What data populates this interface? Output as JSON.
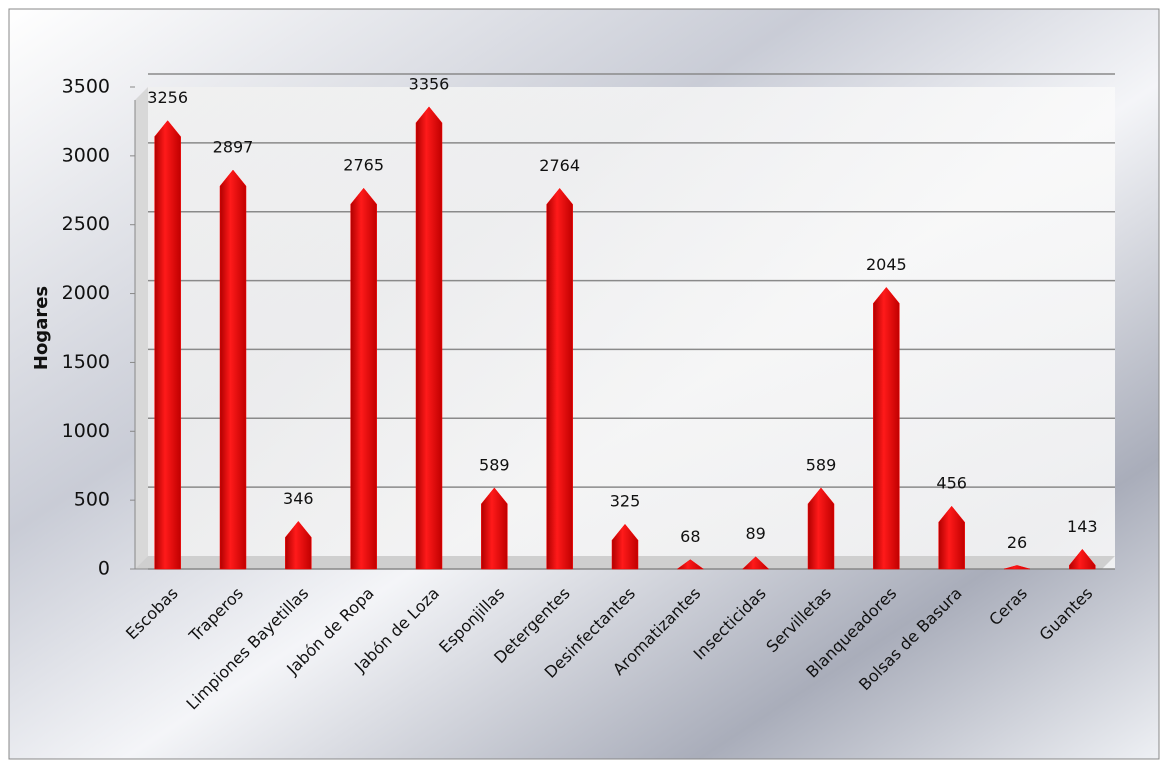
{
  "chart_data": {
    "type": "bar",
    "y_label": "Hogares",
    "categories": [
      "Escobas",
      "Traperos",
      "Limpiones Bayetillas",
      "Jabón de Ropa",
      "Jabón de Loza",
      "Esponjillas",
      "Detergentes",
      "Desinfectantes",
      "Aromatizantes",
      "Insecticidas",
      "Servilletas",
      "Blanqueadores",
      "Bolsas de Basura",
      "Ceras",
      "Guantes"
    ],
    "values": [
      3256,
      2897,
      346,
      2765,
      3356,
      589,
      2764,
      325,
      68,
      89,
      589,
      2045,
      456,
      26,
      143
    ],
    "color": "#ff0000",
    "ylim": [
      0,
      3500
    ],
    "yticks": [
      0,
      500,
      1000,
      1500,
      2000,
      2500,
      3000,
      3500
    ],
    "grid": true
  }
}
